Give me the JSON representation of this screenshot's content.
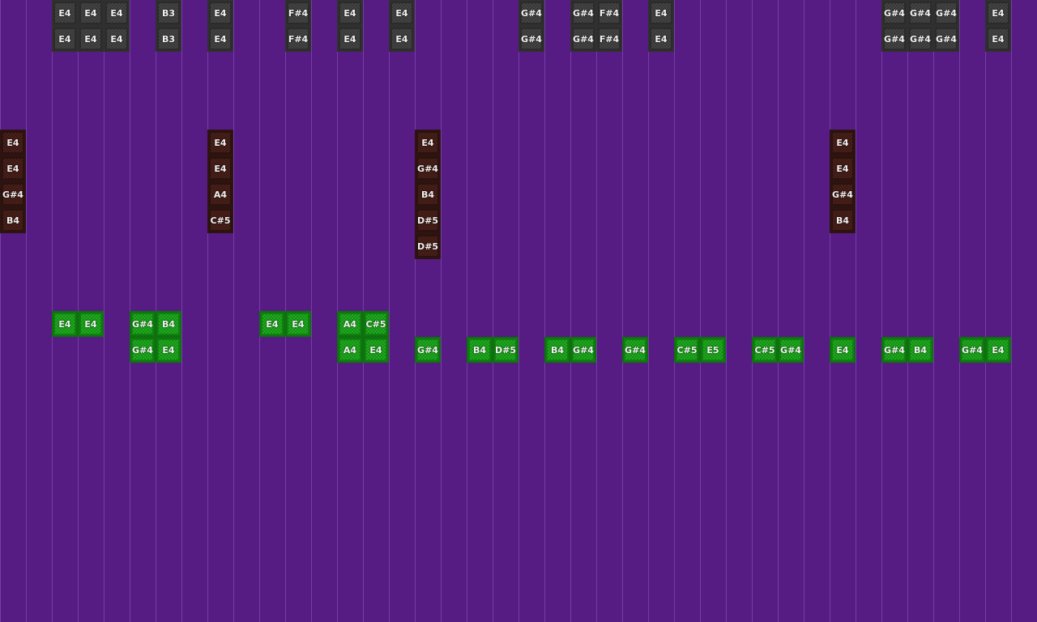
{
  "colors": {
    "background": "#561c84",
    "gray_note": "#3a3a3a",
    "red_note": "#3a1a16",
    "green_note": "#1a9a1a"
  },
  "notes": {
    "gray": [
      {
        "step": 2,
        "slot": 0,
        "label": "E4"
      },
      {
        "step": 3,
        "slot": 0,
        "label": "E4"
      },
      {
        "step": 4,
        "slot": 0,
        "label": "E4"
      },
      {
        "step": 6,
        "slot": 0,
        "label": "B3"
      },
      {
        "step": 8,
        "slot": 0,
        "label": "E4"
      },
      {
        "step": 11,
        "slot": 0,
        "label": "F#4"
      },
      {
        "step": 13,
        "slot": 0,
        "label": "E4"
      },
      {
        "step": 15,
        "slot": 0,
        "label": "E4"
      },
      {
        "step": 20,
        "slot": 0,
        "label": "G#4"
      },
      {
        "step": 22,
        "slot": 0,
        "label": "G#4"
      },
      {
        "step": 23,
        "slot": 0,
        "label": "F#4"
      },
      {
        "step": 25,
        "slot": 0,
        "label": "E4"
      },
      {
        "step": 34,
        "slot": 0,
        "label": "G#4"
      },
      {
        "step": 35,
        "slot": 0,
        "label": "G#4"
      },
      {
        "step": 36,
        "slot": 0,
        "label": "G#4"
      },
      {
        "step": 38,
        "slot": 0,
        "label": "E4"
      },
      {
        "step": 2,
        "slot": 1,
        "label": "E4"
      },
      {
        "step": 3,
        "slot": 1,
        "label": "E4"
      },
      {
        "step": 4,
        "slot": 1,
        "label": "E4"
      },
      {
        "step": 6,
        "slot": 1,
        "label": "B3"
      },
      {
        "step": 8,
        "slot": 1,
        "label": "E4"
      },
      {
        "step": 11,
        "slot": 1,
        "label": "F#4"
      },
      {
        "step": 13,
        "slot": 1,
        "label": "E4"
      },
      {
        "step": 15,
        "slot": 1,
        "label": "E4"
      },
      {
        "step": 20,
        "slot": 1,
        "label": "G#4"
      },
      {
        "step": 22,
        "slot": 1,
        "label": "G#4"
      },
      {
        "step": 23,
        "slot": 1,
        "label": "F#4"
      },
      {
        "step": 25,
        "slot": 1,
        "label": "E4"
      },
      {
        "step": 34,
        "slot": 1,
        "label": "G#4"
      },
      {
        "step": 35,
        "slot": 1,
        "label": "G#4"
      },
      {
        "step": 36,
        "slot": 1,
        "label": "G#4"
      },
      {
        "step": 38,
        "slot": 1,
        "label": "E4"
      }
    ],
    "red": [
      {
        "step": 0,
        "slot": 5,
        "label": "E4"
      },
      {
        "step": 0,
        "slot": 6,
        "label": "E4"
      },
      {
        "step": 0,
        "slot": 7,
        "label": "G#4"
      },
      {
        "step": 0,
        "slot": 8,
        "label": "B4"
      },
      {
        "step": 8,
        "slot": 5,
        "label": "E4"
      },
      {
        "step": 8,
        "slot": 6,
        "label": "E4"
      },
      {
        "step": 8,
        "slot": 7,
        "label": "A4"
      },
      {
        "step": 8,
        "slot": 8,
        "label": "C#5"
      },
      {
        "step": 16,
        "slot": 5,
        "label": "E4"
      },
      {
        "step": 16,
        "slot": 6,
        "label": "G#4"
      },
      {
        "step": 16,
        "slot": 7,
        "label": "B4"
      },
      {
        "step": 16,
        "slot": 8,
        "label": "D#5"
      },
      {
        "step": 16,
        "slot": 9,
        "label": "D#5"
      },
      {
        "step": 32,
        "slot": 5,
        "label": "E4"
      },
      {
        "step": 32,
        "slot": 6,
        "label": "E4"
      },
      {
        "step": 32,
        "slot": 7,
        "label": "G#4"
      },
      {
        "step": 32,
        "slot": 8,
        "label": "B4"
      }
    ],
    "green": [
      {
        "step": 2,
        "slot": 12,
        "label": "E4"
      },
      {
        "step": 3,
        "slot": 12,
        "label": "E4"
      },
      {
        "step": 5,
        "slot": 12,
        "label": "G#4"
      },
      {
        "step": 6,
        "slot": 12,
        "label": "B4"
      },
      {
        "step": 10,
        "slot": 12,
        "label": "E4"
      },
      {
        "step": 11,
        "slot": 12,
        "label": "E4"
      },
      {
        "step": 13,
        "slot": 12,
        "label": "A4"
      },
      {
        "step": 14,
        "slot": 12,
        "label": "C#5"
      },
      {
        "step": 5,
        "slot": 13,
        "label": "G#4"
      },
      {
        "step": 6,
        "slot": 13,
        "label": "E4"
      },
      {
        "step": 13,
        "slot": 13,
        "label": "A4"
      },
      {
        "step": 14,
        "slot": 13,
        "label": "E4"
      },
      {
        "step": 16,
        "slot": 13,
        "label": "G#4"
      },
      {
        "step": 18,
        "slot": 13,
        "label": "B4"
      },
      {
        "step": 19,
        "slot": 13,
        "label": "D#5"
      },
      {
        "step": 21,
        "slot": 13,
        "label": "B4"
      },
      {
        "step": 22,
        "slot": 13,
        "label": "G#4"
      },
      {
        "step": 24,
        "slot": 13,
        "label": "G#4"
      },
      {
        "step": 26,
        "slot": 13,
        "label": "C#5"
      },
      {
        "step": 27,
        "slot": 13,
        "label": "E5"
      },
      {
        "step": 29,
        "slot": 13,
        "label": "C#5"
      },
      {
        "step": 30,
        "slot": 13,
        "label": "G#4"
      },
      {
        "step": 32,
        "slot": 13,
        "label": "E4"
      },
      {
        "step": 34,
        "slot": 13,
        "label": "G#4"
      },
      {
        "step": 35,
        "slot": 13,
        "label": "B4"
      },
      {
        "step": 37,
        "slot": 13,
        "label": "G#4"
      },
      {
        "step": 38,
        "slot": 13,
        "label": "E4"
      }
    ]
  }
}
